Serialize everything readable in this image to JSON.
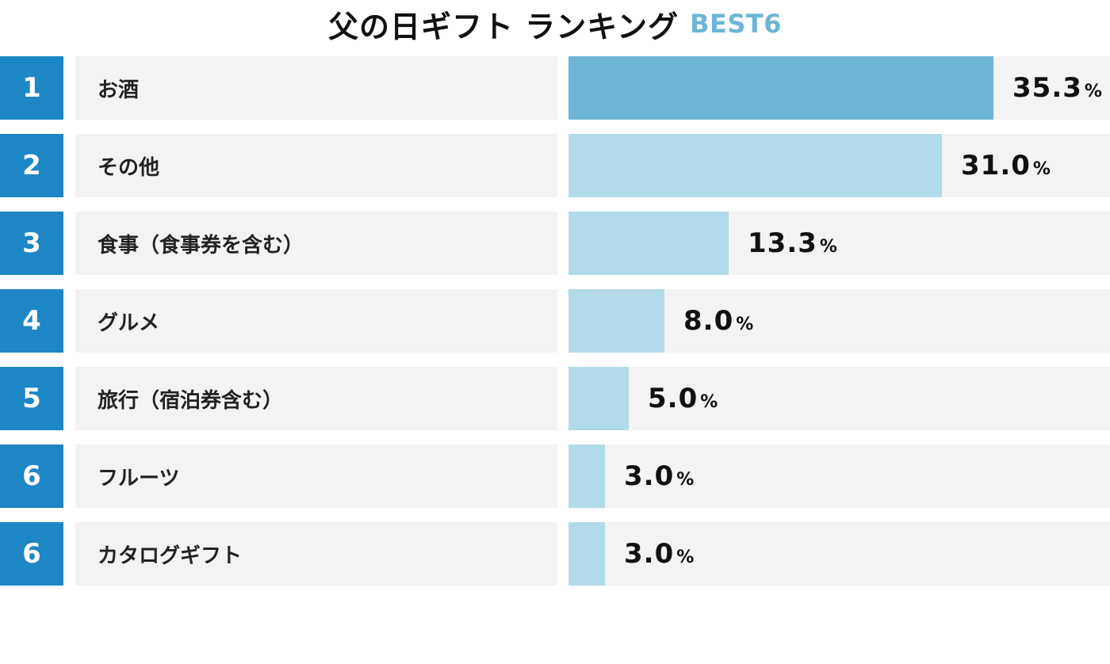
{
  "title": {
    "main": "父の日ギフト ランキング",
    "sub": "BEST6"
  },
  "chart_data": {
    "type": "bar",
    "orientation": "horizontal",
    "title": "父の日ギフト ランキング BEST6",
    "unit": "%",
    "xlim": [
      0,
      45
    ],
    "colors": {
      "rank_badge": "#1d86c5",
      "top_bar": "#6db5d6",
      "bar": "#b2dae8",
      "track": "#f3f3f3",
      "subtitle": "#6db5d6"
    },
    "items": [
      {
        "rank": "1",
        "label": "お酒",
        "value": 35.3,
        "display": "35.3"
      },
      {
        "rank": "2",
        "label": "その他",
        "value": 31.0,
        "display": "31.0"
      },
      {
        "rank": "3",
        "label": "食事（食事券を含む）",
        "value": 13.3,
        "display": "13.3"
      },
      {
        "rank": "4",
        "label": "グルメ",
        "value": 8.0,
        "display": "8.0"
      },
      {
        "rank": "5",
        "label": "旅行（宿泊券含む）",
        "value": 5.0,
        "display": "5.0"
      },
      {
        "rank": "6",
        "label": "フルーツ",
        "value": 3.0,
        "display": "3.0"
      },
      {
        "rank": "6",
        "label": "カタログギフト",
        "value": 3.0,
        "display": "3.0"
      }
    ]
  }
}
